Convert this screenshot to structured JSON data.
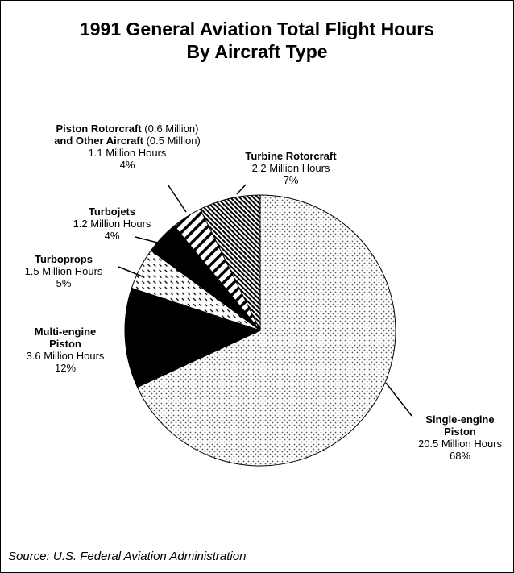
{
  "chart_data": {
    "type": "pie",
    "title": "1991 General Aviation Total Flight Hours",
    "subtitle": "By Aircraft Type",
    "categories": [
      "Single-engine Piston",
      "Multi-engine Piston",
      "Turboprops",
      "Turbojets",
      "Piston Rotorcraft",
      "Turbine Rotorcraft"
    ],
    "values": [
      20.5,
      3.6,
      1.5,
      1.2,
      1.1,
      2.2
    ],
    "value_labels": [
      "20.5 Million Hours",
      "3.6 Million Hours",
      "1.5 Million Hours",
      "1.2 Million Hours",
      "1.1 Million Hours",
      "2.2 Million Hours"
    ],
    "percent_labels": [
      "68%",
      "12%",
      "5%",
      "4%",
      "4%",
      "7%"
    ],
    "annotations": [
      "(0.6 Million)",
      "and Other Aircraft",
      "(0.5 Million)"
    ],
    "patterns": [
      "dots",
      "solid",
      "dashes",
      "solid",
      "stripes",
      "hatch"
    ],
    "source": "Source:  U.S. Federal Aviation Administration"
  }
}
